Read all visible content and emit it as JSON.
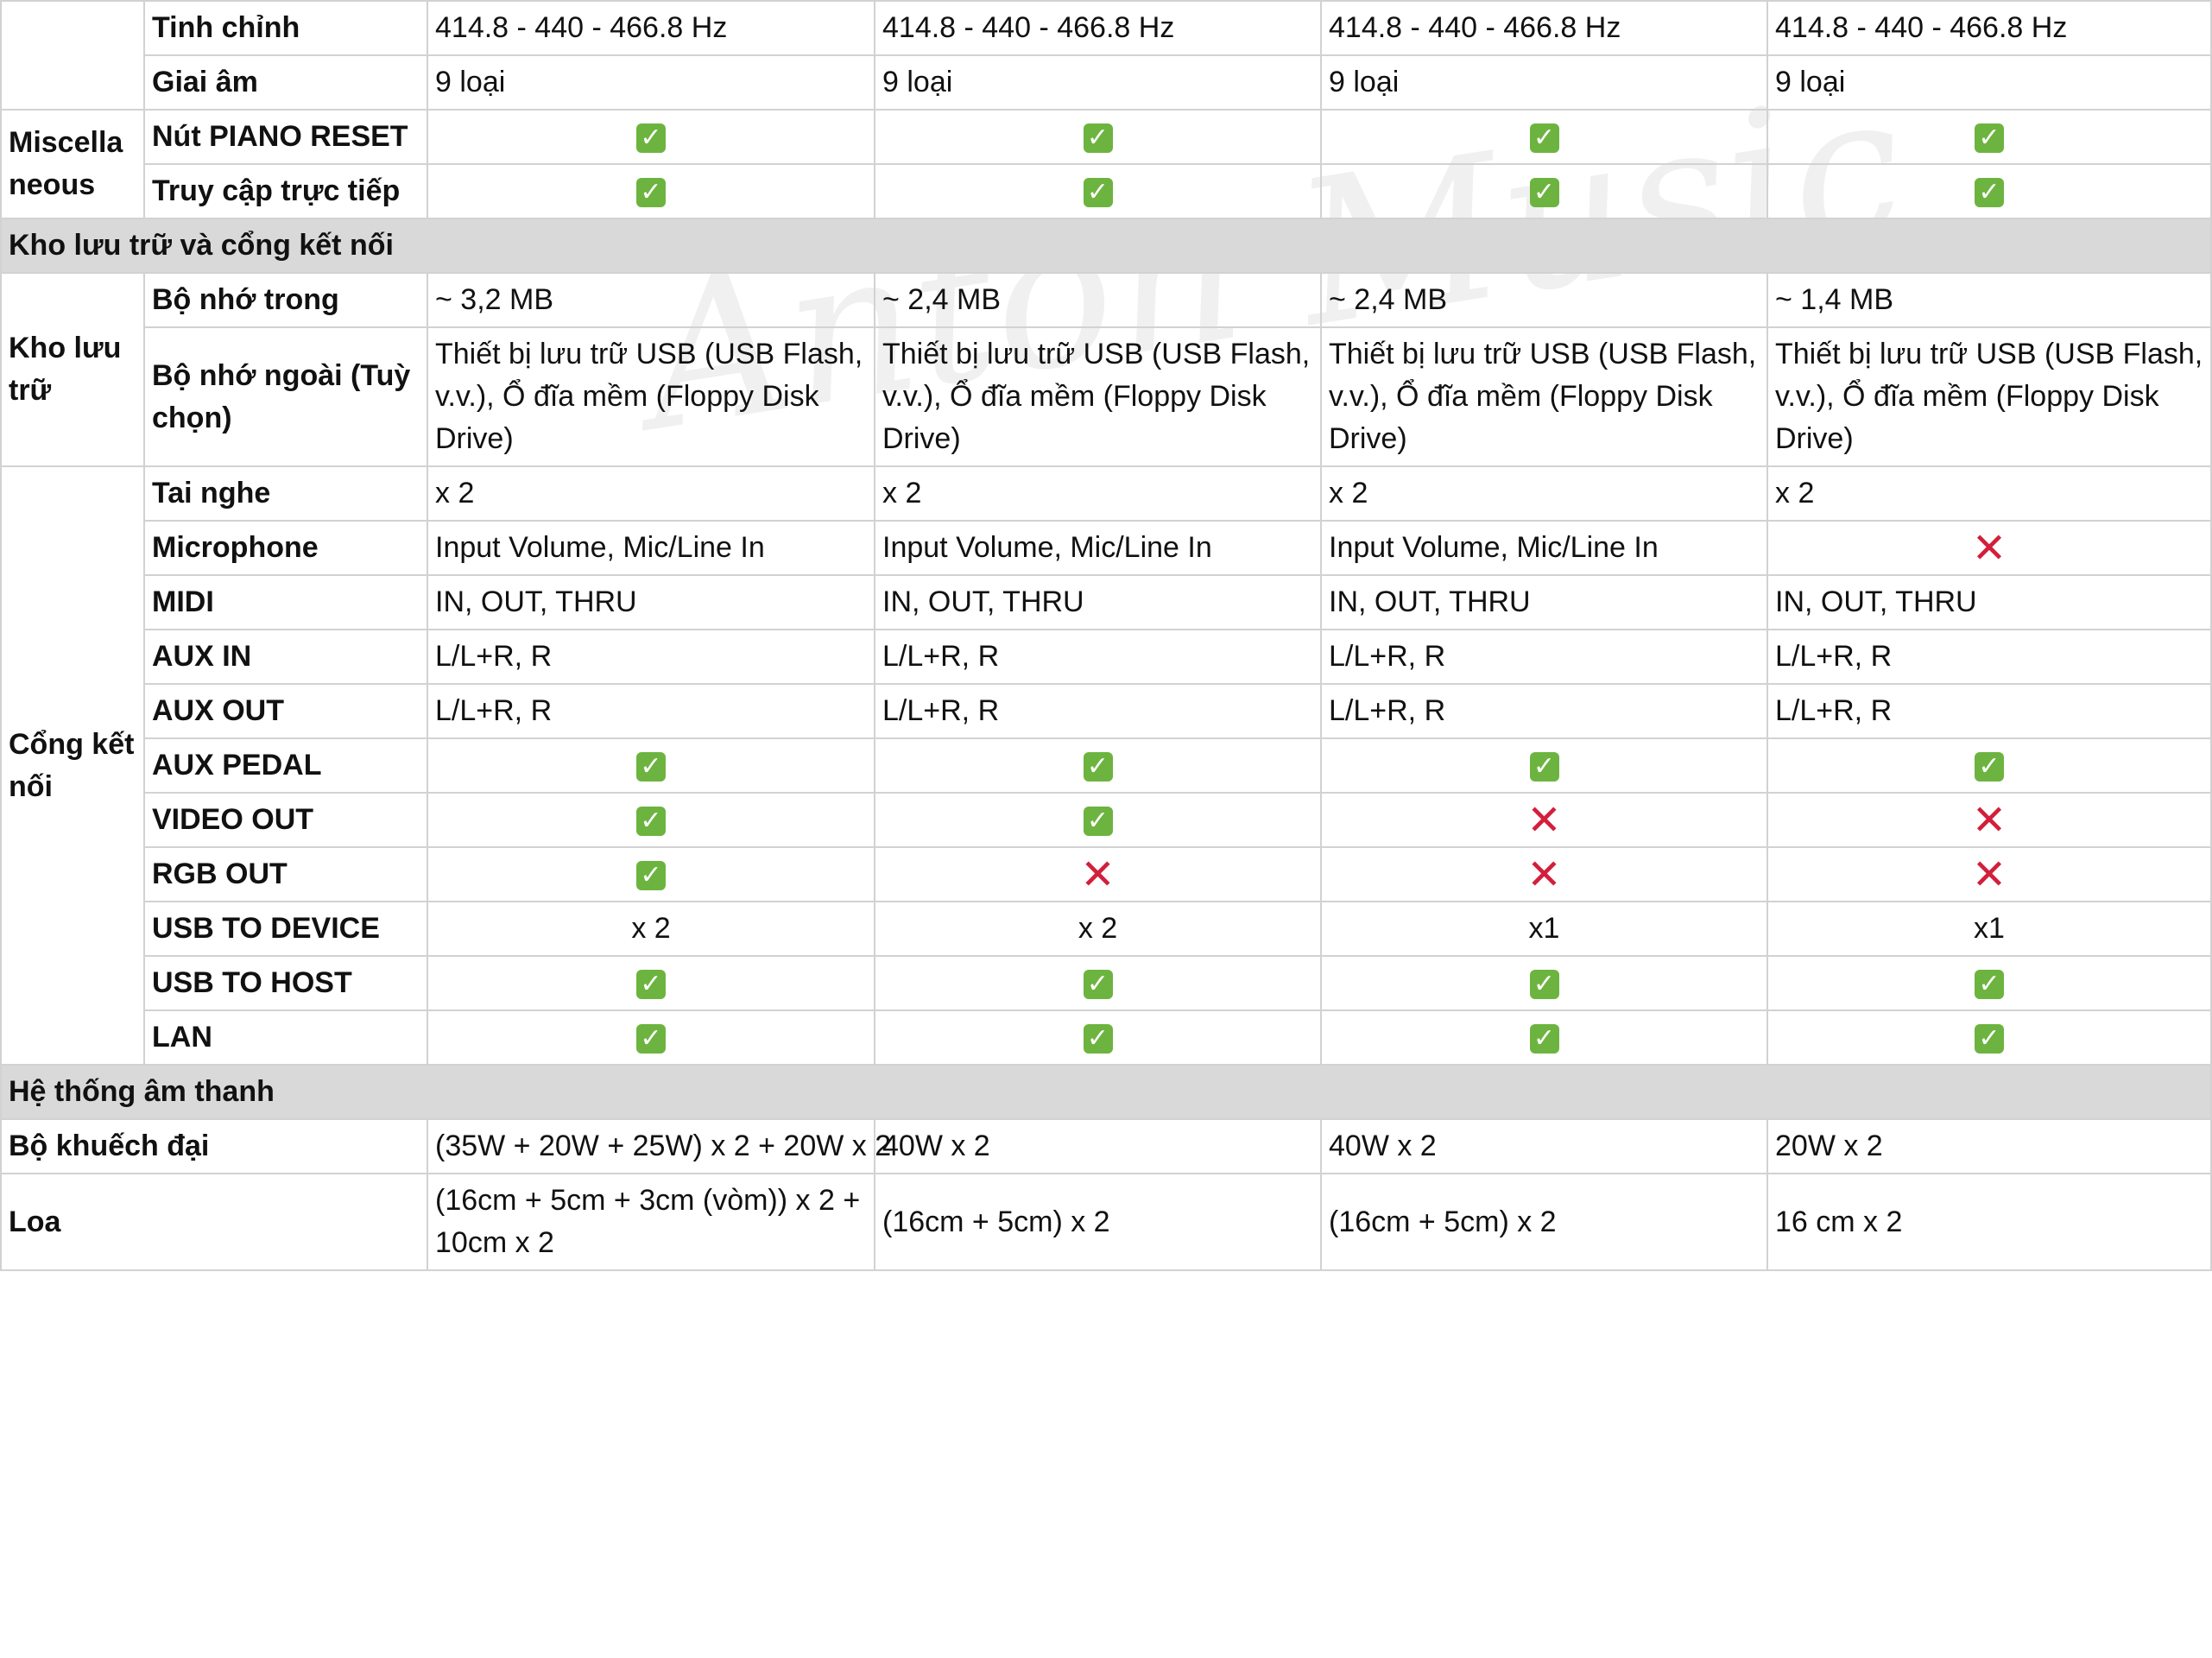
{
  "watermark": "Anton Music",
  "rows": {
    "tinh_chinh": {
      "label": "Tinh chỉnh",
      "values": [
        "414.8 - 440 - 466.8 Hz",
        "414.8 - 440 - 466.8 Hz",
        "414.8 - 440 - 466.8 Hz",
        "414.8 - 440 - 466.8 Hz"
      ]
    },
    "giai_am": {
      "label": "Giai âm",
      "values": [
        "9 loại",
        "9 loại",
        "9 loại",
        "9 loại"
      ]
    },
    "miscellaneous": {
      "group": "Miscellaneous",
      "piano_reset": {
        "label": "Nút PIANO RESET",
        "values": [
          "check",
          "check",
          "check",
          "check"
        ]
      },
      "truy_cap": {
        "label": "Truy cập trực tiếp",
        "values": [
          "check",
          "check",
          "check",
          "check"
        ]
      }
    },
    "section_storage": "Kho lưu trữ và cổng kết nối",
    "storage": {
      "group": "Kho lưu trữ",
      "internal": {
        "label": "Bộ nhớ trong",
        "values": [
          "~ 3,2 MB",
          "~ 2,4 MB",
          "~ 2,4 MB",
          "~ 1,4 MB"
        ]
      },
      "external": {
        "label": "Bộ nhớ ngoài (Tuỳ chọn)",
        "values": [
          "Thiết bị lưu trữ USB (USB Flash, v.v.), Ổ đĩa mềm (Floppy Disk Drive)",
          "Thiết bị lưu trữ USB (USB Flash, v.v.), Ổ đĩa mềm (Floppy Disk Drive)",
          "Thiết bị lưu trữ USB (USB Flash, v.v.), Ổ đĩa mềm (Floppy Disk Drive)",
          "Thiết bị lưu trữ USB (USB Flash, v.v.), Ổ đĩa mềm (Floppy Disk Drive)"
        ]
      }
    },
    "ports": {
      "group": "Cổng kết nối",
      "headphones": {
        "label": "Tai nghe",
        "values": [
          "x 2",
          "x 2",
          "x 2",
          "x 2"
        ]
      },
      "microphone": {
        "label": "Microphone",
        "values": [
          "Input Volume, Mic/Line In",
          "Input Volume, Mic/Line In",
          "Input Volume, Mic/Line In",
          "cross"
        ]
      },
      "midi": {
        "label": "MIDI",
        "values": [
          "IN, OUT, THRU",
          "IN, OUT, THRU",
          "IN, OUT, THRU",
          "IN, OUT, THRU"
        ]
      },
      "aux_in": {
        "label": "AUX IN",
        "values": [
          "L/L+R, R",
          "L/L+R, R",
          "L/L+R, R",
          "L/L+R, R"
        ]
      },
      "aux_out": {
        "label": "AUX OUT",
        "values": [
          "L/L+R, R",
          "L/L+R, R",
          "L/L+R, R",
          "L/L+R, R"
        ]
      },
      "aux_pedal": {
        "label": "AUX PEDAL",
        "values": [
          "check",
          "check",
          "check",
          "check"
        ]
      },
      "video_out": {
        "label": "VIDEO OUT",
        "values": [
          "check",
          "check",
          "cross",
          "cross"
        ]
      },
      "rgb_out": {
        "label": "RGB OUT",
        "values": [
          "check",
          "cross",
          "cross",
          "cross"
        ]
      },
      "usb_device": {
        "label": "USB TO DEVICE",
        "values": [
          "x 2",
          "x 2",
          "x1",
          "x1"
        ]
      },
      "usb_host": {
        "label": "USB TO HOST",
        "values": [
          "check",
          "check",
          "check",
          "check"
        ]
      },
      "lan": {
        "label": "LAN",
        "values": [
          "check",
          "check",
          "check",
          "check"
        ]
      }
    },
    "section_sound": "Hệ thống âm thanh",
    "amplifier": {
      "label": "Bộ khuếch đại",
      "values": [
        "(35W + 20W + 25W) x 2 + 20W x 2",
        "40W x 2",
        "40W x 2",
        "20W x 2"
      ]
    },
    "speakers": {
      "label": "Loa",
      "values": [
        "(16cm + 5cm + 3cm (vòm)) x 2 + 10cm x 2",
        "(16cm + 5cm) x 2",
        "(16cm + 5cm) x 2",
        "16 cm x 2"
      ]
    }
  },
  "icons": {
    "check": {
      "name": "check-icon",
      "glyph": "✓",
      "color": "#6cb43f"
    },
    "cross": {
      "name": "cross-icon",
      "glyph": "✕",
      "color": "#d21f3c"
    }
  }
}
